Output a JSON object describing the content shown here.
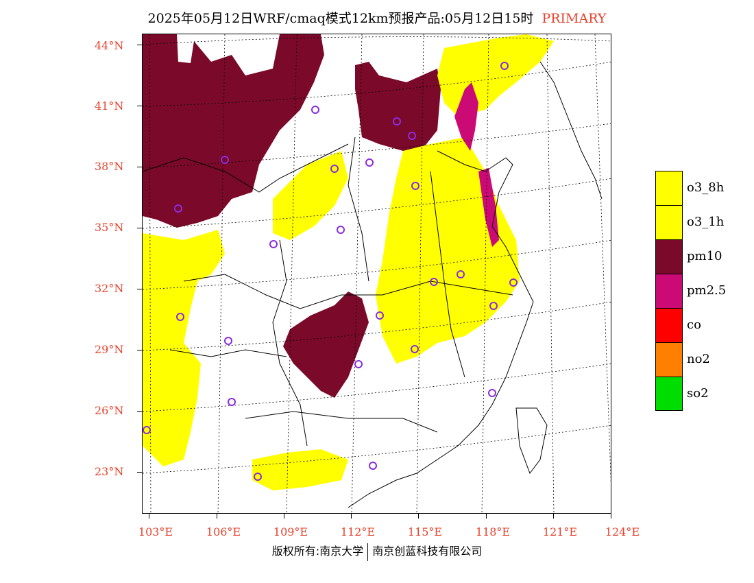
{
  "title": {
    "main": "2025年05月12日WRF/cmaq模式12km预报产品:05月12日15时",
    "tag": "PRIMARY"
  },
  "map": {
    "lat_labels": [
      "44°N",
      "41°N",
      "38°N",
      "35°N",
      "32°N",
      "29°N",
      "26°N",
      "23°N"
    ],
    "lon_labels": [
      "103°E",
      "106°E",
      "109°E",
      "112°E",
      "115°E",
      "118°E",
      "121°E",
      "124°E"
    ],
    "colors": {
      "o3_8h": "#ffff00",
      "o3_1h": "#ffff00",
      "pm10": "#7b0a2a",
      "pm25": "#cc0a76",
      "station": "#8a2be2",
      "grid": "#000000"
    }
  },
  "legend": {
    "items": [
      {
        "label": "o3_8h",
        "color": "#ffff00"
      },
      {
        "label": "o3_1h",
        "color": "#ffff00"
      },
      {
        "label": "pm10",
        "color": "#7b0a2a"
      },
      {
        "label": "pm2.5",
        "color": "#cc0a76"
      },
      {
        "label": "co",
        "color": "#ff0000"
      },
      {
        "label": "no2",
        "color": "#ff8000"
      },
      {
        "label": "so2",
        "color": "#00dd00"
      }
    ]
  },
  "footer": {
    "left": "版权所有:南京大学",
    "right": "南京创蓝科技有限公司"
  }
}
